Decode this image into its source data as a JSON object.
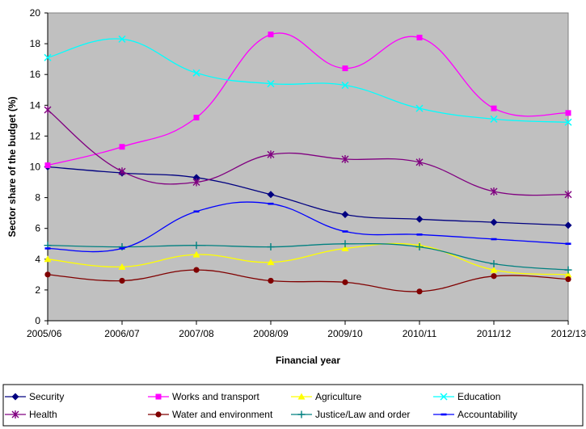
{
  "chart_data": {
    "type": "line",
    "title": "",
    "xlabel": "Financial year",
    "ylabel": "Sector share of the budget (%)",
    "categories": [
      "2005/06",
      "2006/07",
      "2007/08",
      "2008/09",
      "2009/10",
      "2010/11",
      "2011/12",
      "2012/13"
    ],
    "ylim": [
      0,
      20
    ],
    "yticks": [
      0,
      2,
      4,
      6,
      8,
      10,
      12,
      14,
      16,
      18,
      20
    ],
    "grid": false,
    "plot_background": "#c0c0c0",
    "legend_position": "bottom",
    "series": [
      {
        "name": "Security",
        "color": "#000080",
        "marker": "diamond",
        "values": [
          10.0,
          9.6,
          9.3,
          8.2,
          6.9,
          6.6,
          6.4,
          6.2
        ]
      },
      {
        "name": "Works and transport",
        "color": "#ff00ff",
        "marker": "square",
        "values": [
          10.1,
          11.3,
          13.2,
          18.6,
          16.4,
          18.4,
          13.8,
          13.5
        ]
      },
      {
        "name": "Agriculture",
        "color": "#ffff00",
        "marker": "triangle",
        "values": [
          4.0,
          3.5,
          4.3,
          3.8,
          4.7,
          4.9,
          3.3,
          3.0
        ]
      },
      {
        "name": "Education",
        "color": "#00ffff",
        "marker": "x",
        "values": [
          17.1,
          18.3,
          16.1,
          15.4,
          15.3,
          13.8,
          13.1,
          12.9
        ]
      },
      {
        "name": "Health",
        "color": "#800080",
        "marker": "star",
        "values": [
          13.7,
          9.7,
          9.0,
          10.8,
          10.5,
          10.3,
          8.4,
          8.2
        ]
      },
      {
        "name": "Water and environment",
        "color": "#800000",
        "marker": "circle",
        "values": [
          3.0,
          2.6,
          3.3,
          2.6,
          2.5,
          1.9,
          2.9,
          2.7
        ]
      },
      {
        "name": "Justice/Law and order",
        "color": "#008080",
        "marker": "plus",
        "values": [
          4.9,
          4.8,
          4.9,
          4.8,
          5.0,
          4.8,
          3.7,
          3.3
        ]
      },
      {
        "name": "Accountability",
        "color": "#0000ff",
        "marker": "dash",
        "values": [
          4.7,
          4.7,
          7.1,
          7.6,
          5.8,
          5.6,
          5.3,
          5.0
        ]
      }
    ]
  }
}
